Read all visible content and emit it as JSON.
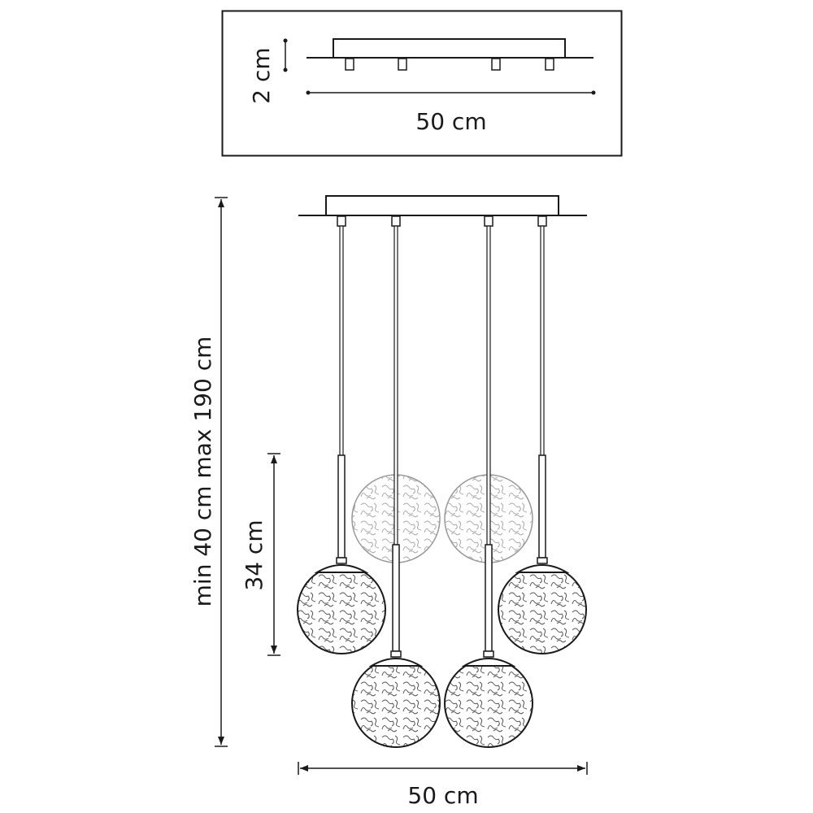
{
  "top_view": {
    "height_label": "2 cm",
    "width_label": "50 cm"
  },
  "main_view": {
    "cord_length_label": "min 40 cm max 190 cm",
    "drop_label": "34 cm",
    "width_label": "50 cm",
    "pendant_count": 4,
    "ghost_shade_count": 2
  },
  "colors": {
    "line": "#1a1a1a",
    "texture": "#555555",
    "ghost": "#999999"
  }
}
